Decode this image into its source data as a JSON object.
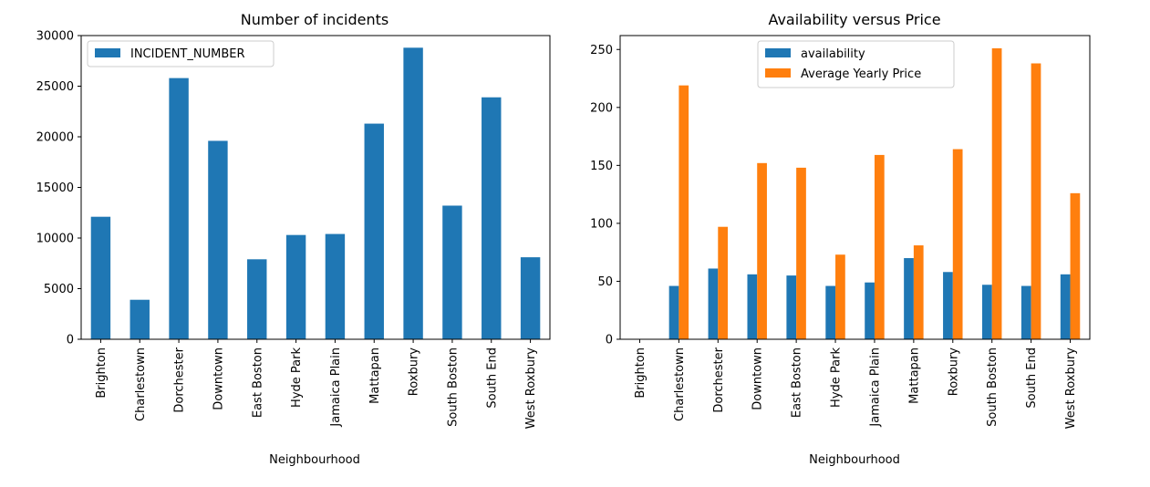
{
  "chart_data": [
    {
      "type": "bar",
      "title": "Number of incidents",
      "xlabel": "Neighbourhood",
      "ylabel": "",
      "categories": [
        "Brighton",
        "Charlestown",
        "Dorchester",
        "Downtown",
        "East Boston",
        "Hyde Park",
        "Jamaica Plain",
        "Mattapan",
        "Roxbury",
        "South Boston",
        "South End",
        "West Roxbury"
      ],
      "series": [
        {
          "name": "INCIDENT_NUMBER",
          "color": "#1f77b4",
          "values": [
            12100,
            3900,
            25800,
            19600,
            7900,
            10300,
            10400,
            21300,
            28800,
            13200,
            23900,
            8100
          ]
        }
      ],
      "ylim": [
        0,
        30000
      ],
      "yticks": [
        0,
        5000,
        10000,
        15000,
        20000,
        25000,
        30000
      ],
      "ytick_labels": [
        "0",
        "5000",
        "10000",
        "15000",
        "20000",
        "25000",
        "30000"
      ],
      "grid": false,
      "legend_position": "top-left"
    },
    {
      "type": "bar",
      "title": "Availability versus Price",
      "xlabel": "Neighbourhood",
      "ylabel": "",
      "categories": [
        "Brighton",
        "Charlestown",
        "Dorchester",
        "Downtown",
        "East Boston",
        "Hyde Park",
        "Jamaica Plain",
        "Mattapan",
        "Roxbury",
        "South Boston",
        "South End",
        "West Roxbury"
      ],
      "series": [
        {
          "name": "availability",
          "color": "#1f77b4",
          "values": [
            0,
            46,
            61,
            56,
            55,
            46,
            49,
            70,
            58,
            47,
            46,
            56
          ]
        },
        {
          "name": "Average Yearly Price",
          "color": "#ff7f0e",
          "values": [
            0,
            219,
            97,
            152,
            148,
            73,
            159,
            81,
            164,
            251,
            238,
            126
          ]
        }
      ],
      "ylim": [
        0,
        262
      ],
      "yticks": [
        0,
        50,
        100,
        150,
        200,
        250
      ],
      "ytick_labels": [
        "0",
        "50",
        "100",
        "150",
        "200",
        "250"
      ],
      "grid": false,
      "legend_position": "top-center"
    }
  ]
}
